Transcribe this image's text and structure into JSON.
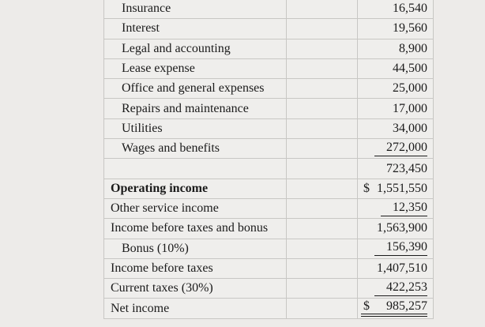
{
  "table": {
    "name": "income-statement-excerpt",
    "columns": [
      "label",
      "spacer",
      "amount"
    ],
    "currency_symbol": "$",
    "rows": [
      {
        "label": "Insurance",
        "value": "16,540",
        "indent": true,
        "bold": false,
        "currency": "",
        "underline": "none"
      },
      {
        "label": "Interest",
        "value": "19,560",
        "indent": true,
        "bold": false,
        "currency": "",
        "underline": "none"
      },
      {
        "label": "Legal and accounting",
        "value": "8,900",
        "indent": true,
        "bold": false,
        "currency": "",
        "underline": "none"
      },
      {
        "label": "Lease expense",
        "value": "44,500",
        "indent": true,
        "bold": false,
        "currency": "",
        "underline": "none"
      },
      {
        "label": "Office and general expenses",
        "value": "25,000",
        "indent": true,
        "bold": false,
        "currency": "",
        "underline": "none"
      },
      {
        "label": "Repairs and maintenance",
        "value": "17,000",
        "indent": true,
        "bold": false,
        "currency": "",
        "underline": "none"
      },
      {
        "label": "Utilities",
        "value": "34,000",
        "indent": true,
        "bold": false,
        "currency": "",
        "underline": "none"
      },
      {
        "label": "Wages and benefits",
        "value": "272,000",
        "indent": true,
        "bold": false,
        "currency": "",
        "underline": "single"
      },
      {
        "label": "",
        "value": "723,450",
        "indent": false,
        "bold": false,
        "currency": "",
        "underline": "none"
      },
      {
        "label": "Operating income",
        "value": "1,551,550",
        "indent": false,
        "bold": true,
        "currency": "$",
        "underline": "none"
      },
      {
        "label": "Other service income",
        "value": "12,350",
        "indent": false,
        "bold": false,
        "currency": "",
        "underline": "single"
      },
      {
        "label": "Income before taxes and bonus",
        "value": "1,563,900",
        "indent": false,
        "bold": false,
        "currency": "",
        "underline": "none"
      },
      {
        "label": "Bonus (10%)",
        "value": "156,390",
        "indent": true,
        "bold": false,
        "currency": "",
        "underline": "single"
      },
      {
        "label": "Income before taxes",
        "value": "1,407,510",
        "indent": false,
        "bold": false,
        "currency": "",
        "underline": "none"
      },
      {
        "label": "Current taxes (30%)",
        "value": "422,253",
        "indent": false,
        "bold": false,
        "currency": "",
        "underline": "single"
      },
      {
        "label": "Net income",
        "value": "985,257",
        "indent": false,
        "bold": false,
        "currency": "$",
        "underline": "double"
      }
    ],
    "colors": {
      "page_background": "#edebe9",
      "cell_background": "#efeeec",
      "border": "#c8c7c4",
      "text": "#1b1b1b"
    }
  }
}
